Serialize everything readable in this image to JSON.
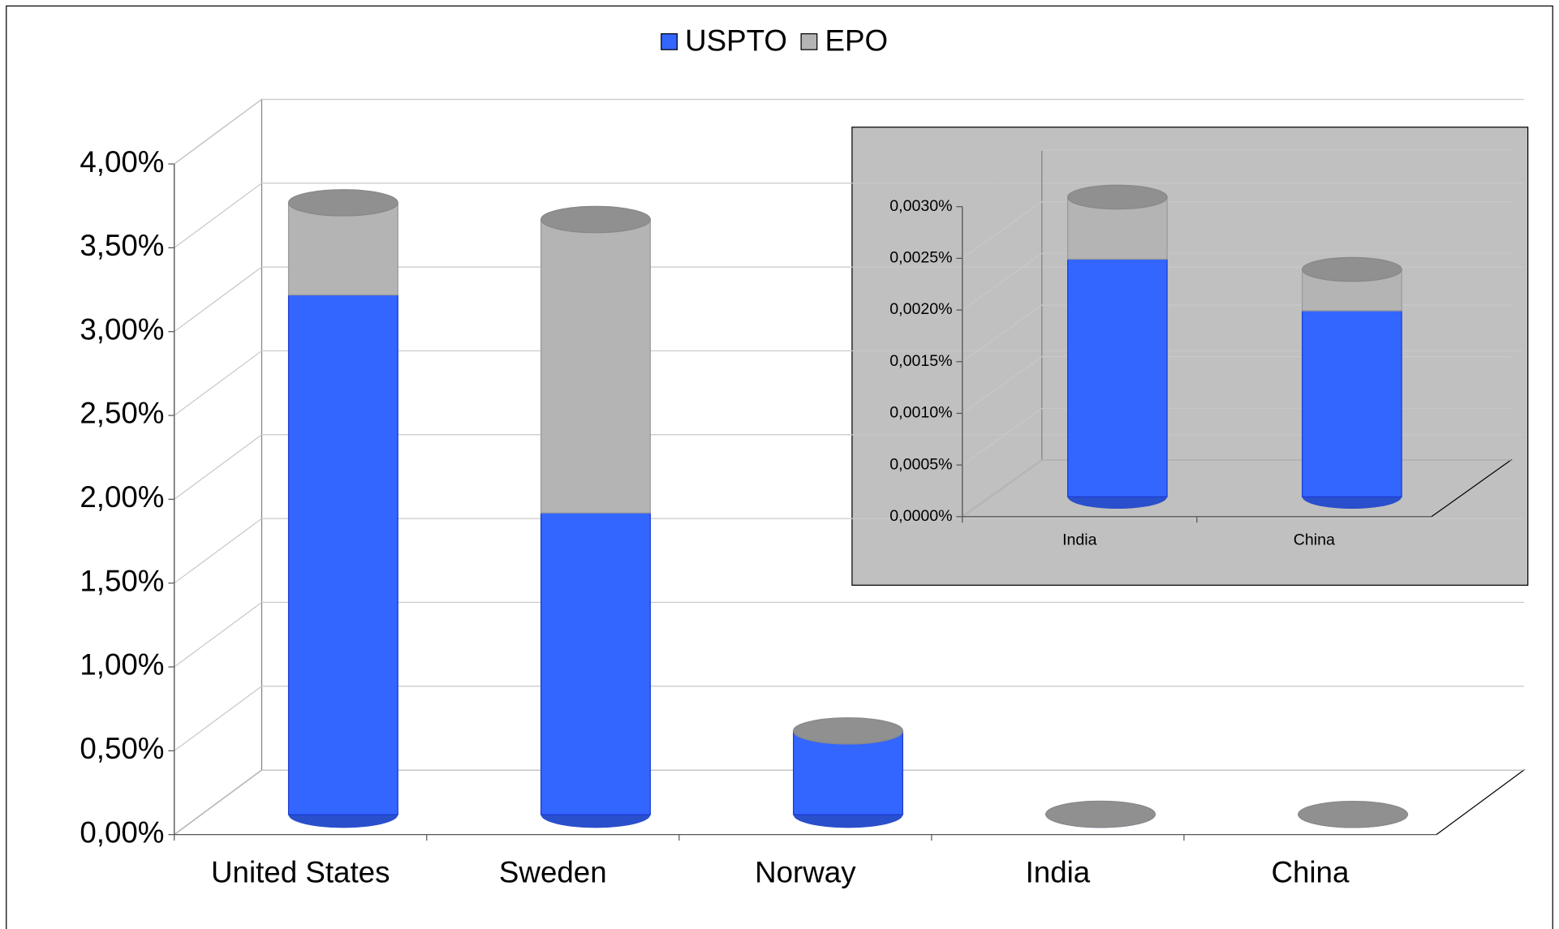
{
  "chart_data": [
    {
      "type": "bar3d",
      "categories": [
        "United States",
        "Sweden",
        "Norway",
        "India",
        "China"
      ],
      "series": [
        {
          "name": "USPTO",
          "color": "#3366ff",
          "values": [
            3.1,
            1.8,
            0.5,
            0.0023,
            0.0018
          ]
        },
        {
          "name": "EPO",
          "color": "#b4b4b4",
          "values": [
            0.55,
            1.75,
            0,
            0.0006,
            0.0004
          ]
        }
      ],
      "ylim": [
        0,
        4
      ],
      "yticks": [
        {
          "value": 0,
          "label": "0,00%"
        },
        {
          "value": 0.5,
          "label": "0,50%"
        },
        {
          "value": 1,
          "label": "1,00%"
        },
        {
          "value": 1.5,
          "label": "1,50%"
        },
        {
          "value": 2,
          "label": "2,00%"
        },
        {
          "value": 2.5,
          "label": "2,50%"
        },
        {
          "value": 3,
          "label": "3,00%"
        },
        {
          "value": 3.5,
          "label": "3,50%"
        },
        {
          "value": 4,
          "label": "4,00%"
        }
      ],
      "grid": true,
      "legend": "top"
    },
    {
      "type": "bar3d",
      "categories": [
        "India",
        "China"
      ],
      "series": [
        {
          "name": "USPTO",
          "color": "#3366ff",
          "values": [
            0.0023,
            0.0018
          ]
        },
        {
          "name": "EPO",
          "color": "#b4b4b4",
          "values": [
            0.0006,
            0.0004
          ]
        }
      ],
      "ylim": [
        0,
        0.003
      ],
      "yticks": [
        {
          "value": 0,
          "label": "0,0000%"
        },
        {
          "value": 0.0005,
          "label": "0,0005%"
        },
        {
          "value": 0.001,
          "label": "0,0010%"
        },
        {
          "value": 0.0015,
          "label": "0,0015%"
        },
        {
          "value": 0.002,
          "label": "0,0020%"
        },
        {
          "value": 0.0025,
          "label": "0,0025%"
        },
        {
          "value": 0.003,
          "label": "0,0030%"
        }
      ],
      "grid": true
    }
  ]
}
